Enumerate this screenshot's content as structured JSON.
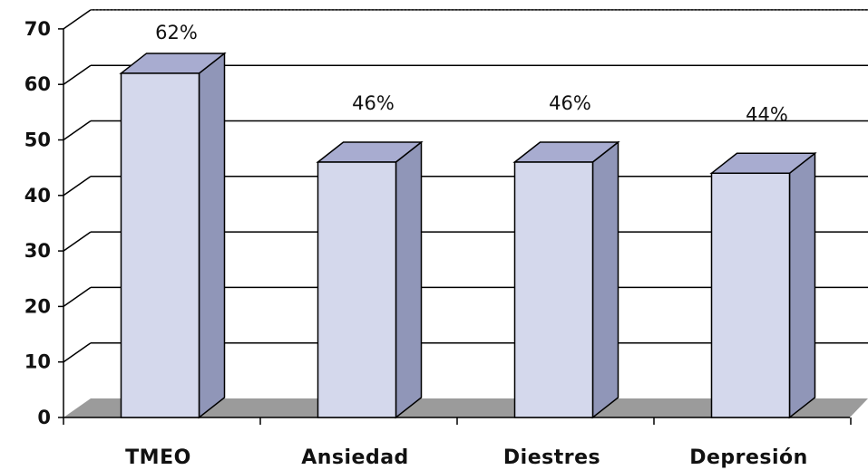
{
  "chart_data": {
    "type": "bar",
    "title": "",
    "xlabel": "",
    "ylabel": "",
    "categories": [
      "TMEO",
      "Ansiedad",
      "Diestres",
      "Depresión"
    ],
    "values": [
      62,
      46,
      46,
      44
    ],
    "data_labels": [
      "62%",
      "46%",
      "46%",
      "44%"
    ],
    "ylim": [
      0,
      70
    ],
    "yticks": [
      0,
      10,
      20,
      30,
      40,
      50,
      60,
      70
    ],
    "grid": true,
    "legend": "none",
    "style": "3d-column",
    "colors": {
      "bar_front": "#d4d8ec",
      "bar_top": "#a8acd0",
      "bar_side": "#9096b8",
      "floor": "#9b9b9b",
      "grid": "#000000"
    }
  }
}
